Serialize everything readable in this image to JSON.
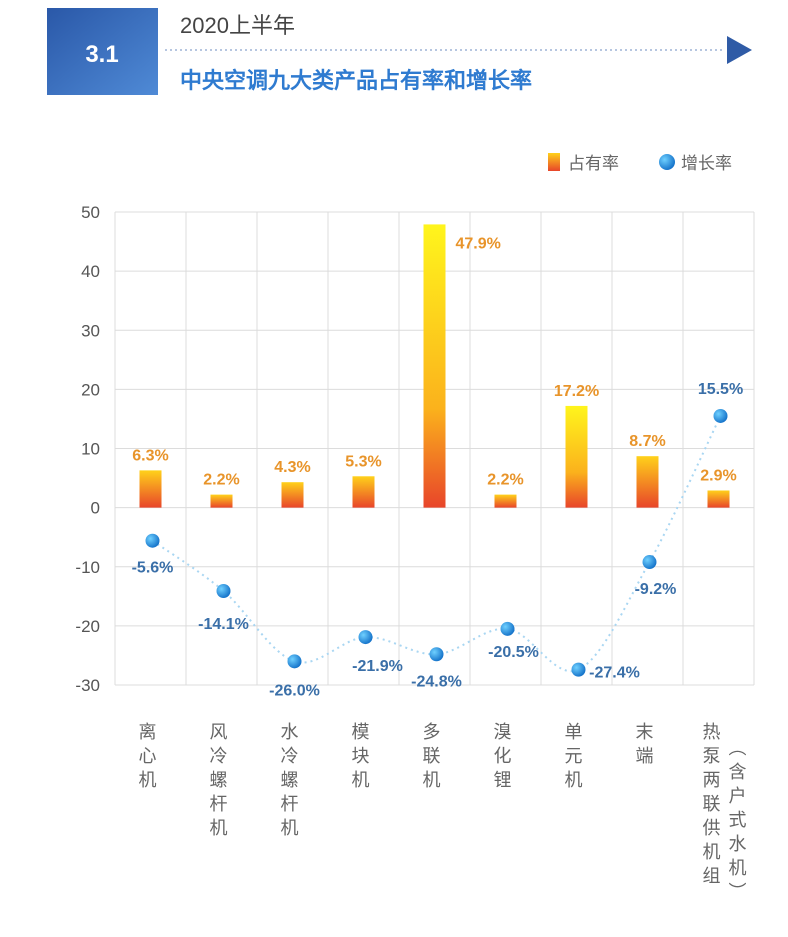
{
  "header": {
    "section_number": "3.1",
    "subtitle": "2020上半年",
    "title": "中央空调九大类产品占有率和增长率"
  },
  "colors": {
    "header_box": "#3566b4",
    "title": "#2f7bd0",
    "bar_bottom": "#e8452a",
    "bar_top": "#fff21c",
    "dot": "#1f8fe0",
    "growth_label": "#3a6fa8",
    "share_label": "#e8942a"
  },
  "chart_data": {
    "type": "bar",
    "title": "中央空调九大类产品占有率和增长率",
    "categories": [
      "离心机",
      "风冷螺杆机",
      "水冷螺杆机",
      "模块机",
      "多联机",
      "溴化锂",
      "单元机",
      "末端",
      "热泵两联供机组（含户式水机）"
    ],
    "series": [
      {
        "name": "占有率",
        "type": "bar",
        "values": [
          6.3,
          2.2,
          4.3,
          5.3,
          47.9,
          2.2,
          17.2,
          8.7,
          2.9
        ],
        "labels": [
          "6.3%",
          "2.2%",
          "4.3%",
          "5.3%",
          "47.9%",
          "2.2%",
          "17.2%",
          "8.7%",
          "2.9%"
        ]
      },
      {
        "name": "增长率",
        "type": "scatter-line",
        "values": [
          -5.6,
          -14.1,
          -26.0,
          -21.9,
          -24.8,
          -20.5,
          -27.4,
          -9.2,
          15.5
        ],
        "labels": [
          "-5.6%",
          "-14.1%",
          "-26.0%",
          "-21.9%",
          "-24.8%",
          "-20.5%",
          "-27.4%",
          "-9.2%",
          "15.5%"
        ]
      }
    ],
    "ylim": [
      -30,
      50
    ],
    "yticks": [
      "50",
      "40",
      "30",
      "20",
      "10",
      "0",
      "-10",
      "-20",
      "-30"
    ],
    "xlabel": "",
    "ylabel": "",
    "grid": true,
    "legend": "top-right"
  }
}
